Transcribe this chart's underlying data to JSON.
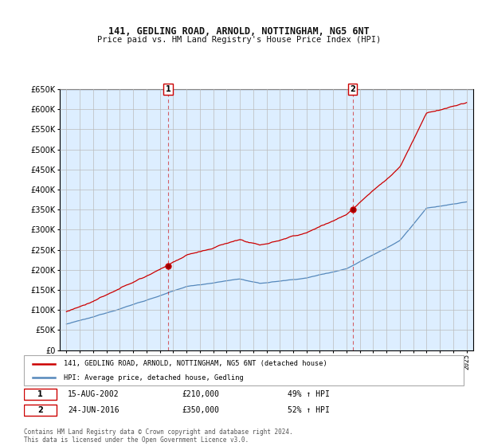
{
  "title": "141, GEDLING ROAD, ARNOLD, NOTTINGHAM, NG5 6NT",
  "subtitle": "Price paid vs. HM Land Registry's House Price Index (HPI)",
  "legend_line1": "141, GEDLING ROAD, ARNOLD, NOTTINGHAM, NG5 6NT (detached house)",
  "legend_line2": "HPI: Average price, detached house, Gedling",
  "sale1_date": "15-AUG-2002",
  "sale1_price": 210000,
  "sale1_label": "49% ↑ HPI",
  "sale2_date": "24-JUN-2016",
  "sale2_price": 350000,
  "sale2_label": "52% ↑ HPI",
  "footer": "Contains HM Land Registry data © Crown copyright and database right 2024.\nThis data is licensed under the Open Government Licence v3.0.",
  "red_color": "#cc0000",
  "blue_color": "#5588bb",
  "shading_color": "#ddeeff",
  "background_color": "#ffffff",
  "grid_color": "#cccccc",
  "ylim": [
    0,
    650000
  ],
  "yticks": [
    0,
    50000,
    100000,
    150000,
    200000,
    250000,
    300000,
    350000,
    400000,
    450000,
    500000,
    550000,
    600000,
    650000
  ],
  "x_start_year": 1995,
  "x_end_year": 2025,
  "t1": 2002.625,
  "t2": 2016.458,
  "sale1_val": 210000,
  "sale2_val": 350000
}
